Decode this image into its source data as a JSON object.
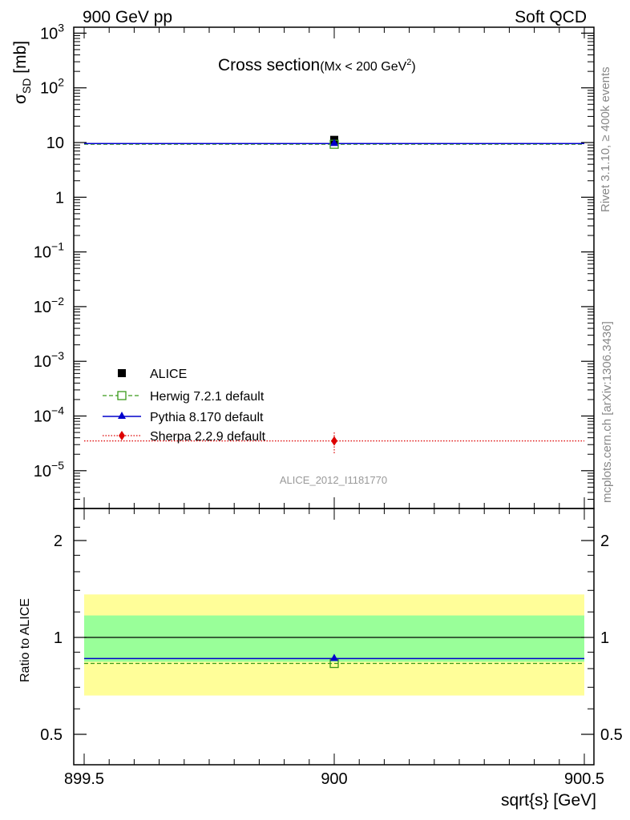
{
  "header": {
    "left": "900 GeV pp",
    "right": "Soft QCD"
  },
  "side": {
    "rivet": "Rivet 3.1.10, ≥ 400k events",
    "mcplots": "mcplots.cern.ch [arXiv:1306.3436]"
  },
  "main_plot": {
    "title": "Cross section",
    "subtitle_prefix": "(Mx < 200 GeV",
    "subtitle_sup": "2",
    "subtitle_suffix": ")",
    "ylabel_main": "σ",
    "ylabel_sub": "SD",
    "ylabel_unit": " [mb]",
    "analysis_tag": "ALICE_2012_I1181770",
    "yticks": [
      {
        "base": "10",
        "exp": "3"
      },
      {
        "base": "10",
        "exp": "2"
      },
      {
        "base": "10",
        "exp": ""
      },
      {
        "base": "1",
        "exp": ""
      },
      {
        "base": "10",
        "exp": "−1"
      },
      {
        "base": "10",
        "exp": "−2"
      },
      {
        "base": "10",
        "exp": "−3"
      },
      {
        "base": "10",
        "exp": "−4"
      },
      {
        "base": "10",
        "exp": "−5"
      }
    ]
  },
  "ratio_plot": {
    "ylabel": "Ratio to ALICE",
    "yticks": [
      "2",
      "1",
      "0.5"
    ]
  },
  "xaxis": {
    "label": "sqrt{s} [GeV]",
    "ticks": [
      "899.5",
      "900",
      "900.5"
    ]
  },
  "legend": [
    {
      "label": "ALICE",
      "color": "#000000",
      "marker": "square-filled",
      "line": "none"
    },
    {
      "label": "Herwig 7.2.1 default",
      "color": "#3a9a1a",
      "marker": "square-open",
      "line": "dashed"
    },
    {
      "label": "Pythia 8.170 default",
      "color": "#0000cc",
      "marker": "triangle",
      "line": "solid"
    },
    {
      "label": "Sherpa 2.2.9 default",
      "color": "#dd0000",
      "marker": "diamond",
      "line": "dotted"
    }
  ],
  "chart_data": [
    {
      "type": "scatter",
      "title": "Cross section (Mx < 200 GeV²)",
      "xlabel": "sqrt{s} [GeV]",
      "ylabel": "σ_SD [mb]",
      "xlim": [
        899.5,
        900.5
      ],
      "ylim": [
        3e-06,
        1000
      ],
      "yscale": "log",
      "series": [
        {
          "name": "ALICE",
          "x": [
            900
          ],
          "y": [
            11.2
          ],
          "yerr": [
            1.6
          ]
        },
        {
          "name": "Herwig 7.2.1 default",
          "x": [
            900
          ],
          "y": [
            9.3
          ]
        },
        {
          "name": "Pythia 8.170 default",
          "x": [
            900
          ],
          "y": [
            9.6
          ]
        },
        {
          "name": "Sherpa 2.2.9 default",
          "x": [
            900
          ],
          "y": [
            3.5e-05
          ],
          "yerr": [
            1.5e-05
          ]
        }
      ]
    },
    {
      "type": "line",
      "ylabel": "Ratio to ALICE",
      "xlabel": "sqrt{s} [GeV]",
      "xlim": [
        899.5,
        900.5
      ],
      "ylim": [
        0.4,
        2.3
      ],
      "yscale": "log",
      "bands": [
        {
          "color": "#fffe99",
          "low": 0.66,
          "high": 1.36
        },
        {
          "color": "#99ff99",
          "low": 0.84,
          "high": 1.17
        }
      ],
      "series": [
        {
          "name": "Herwig 7.2.1 default",
          "x": [
            900
          ],
          "y": [
            0.83
          ]
        },
        {
          "name": "Pythia 8.170 default",
          "x": [
            900
          ],
          "y": [
            0.86
          ]
        }
      ]
    }
  ]
}
